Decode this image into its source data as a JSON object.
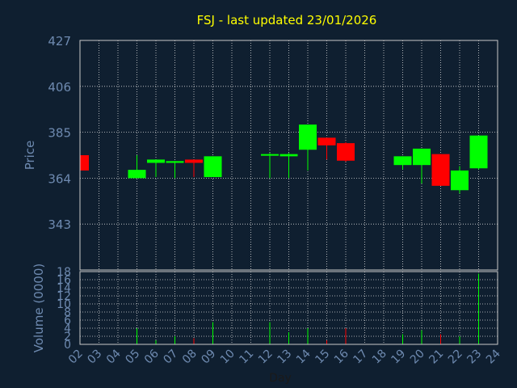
{
  "chart_data": {
    "type": "candlestick",
    "title": "FSJ - last updated 23/01/2026",
    "xlabel": "Day",
    "colors": {
      "background": "#0f1f30",
      "plot_bg": "#0f1f30",
      "frame": "#c8c8c8",
      "grid": "#d8d8d8",
      "title": "#ffff00",
      "axis_label": "#6e8ab0",
      "tick_label": "#6e8ab0",
      "up": "#00ff00",
      "down": "#ff0000"
    },
    "x_ticks": [
      "02",
      "03",
      "04",
      "05",
      "06",
      "07",
      "08",
      "09",
      "10",
      "11",
      "12",
      "13",
      "14",
      "15",
      "16",
      "17",
      "18",
      "19",
      "20",
      "21",
      "22",
      "23",
      "24"
    ],
    "price_panel": {
      "ylabel": "Price",
      "ylim": [
        322,
        427
      ],
      "y_ticks": [
        427,
        406,
        385,
        364,
        343
      ],
      "grid": true
    },
    "volume_panel": {
      "ylabel": "Volume (0000)",
      "ylim": [
        0,
        18
      ],
      "y_ticks": [
        0,
        2,
        4,
        6,
        8,
        10,
        12,
        14,
        16,
        18
      ],
      "grid": true
    },
    "candles": [
      {
        "day": "02",
        "open": 374.5,
        "close": 367.5,
        "high": 374.5,
        "low": 367.5,
        "volume": 0
      },
      {
        "day": "05",
        "open": 364.0,
        "close": 367.8,
        "high": 374.5,
        "low": 364.0,
        "volume": 4.0
      },
      {
        "day": "06",
        "open": 371.0,
        "close": 372.5,
        "high": 372.5,
        "low": 364.5,
        "volume": 1.0
      },
      {
        "day": "07",
        "open": 371.0,
        "close": 371.8,
        "high": 371.8,
        "low": 364.0,
        "volume": 2.0
      },
      {
        "day": "08",
        "open": 372.5,
        "close": 371.0,
        "high": 372.5,
        "low": 364.5,
        "volume": 1.5
      },
      {
        "day": "09",
        "open": 364.5,
        "close": 374.0,
        "high": 374.0,
        "low": 364.5,
        "volume": 5.5
      },
      {
        "day": "12",
        "open": 374.5,
        "close": 375.0,
        "high": 375.5,
        "low": 364.0,
        "volume": 5.5
      },
      {
        "day": "13",
        "open": 374.0,
        "close": 375.0,
        "high": 375.5,
        "low": 364.0,
        "volume": 3.0
      },
      {
        "day": "14",
        "open": 377.0,
        "close": 388.5,
        "high": 388.5,
        "low": 367.5,
        "volume": 4.0
      },
      {
        "day": "15",
        "open": 382.5,
        "close": 379.0,
        "high": 382.5,
        "low": 372.5,
        "volume": 1.0
      },
      {
        "day": "16",
        "open": 380.0,
        "close": 372.0,
        "high": 380.5,
        "low": 371.5,
        "volume": 4.0
      },
      {
        "day": "19",
        "open": 370.0,
        "close": 374.0,
        "high": 374.0,
        "low": 368.0,
        "volume": 2.5
      },
      {
        "day": "20",
        "open": 370.0,
        "close": 377.5,
        "high": 377.5,
        "low": 361.5,
        "volume": 3.5
      },
      {
        "day": "21",
        "open": 375.0,
        "close": 360.5,
        "high": 375.0,
        "low": 360.5,
        "volume": 2.5
      },
      {
        "day": "22",
        "open": 358.5,
        "close": 367.5,
        "high": 369.5,
        "low": 357.0,
        "volume": 2.0
      },
      {
        "day": "23",
        "open": 368.5,
        "close": 383.5,
        "high": 383.5,
        "low": 368.0,
        "volume": 17.5
      }
    ]
  }
}
